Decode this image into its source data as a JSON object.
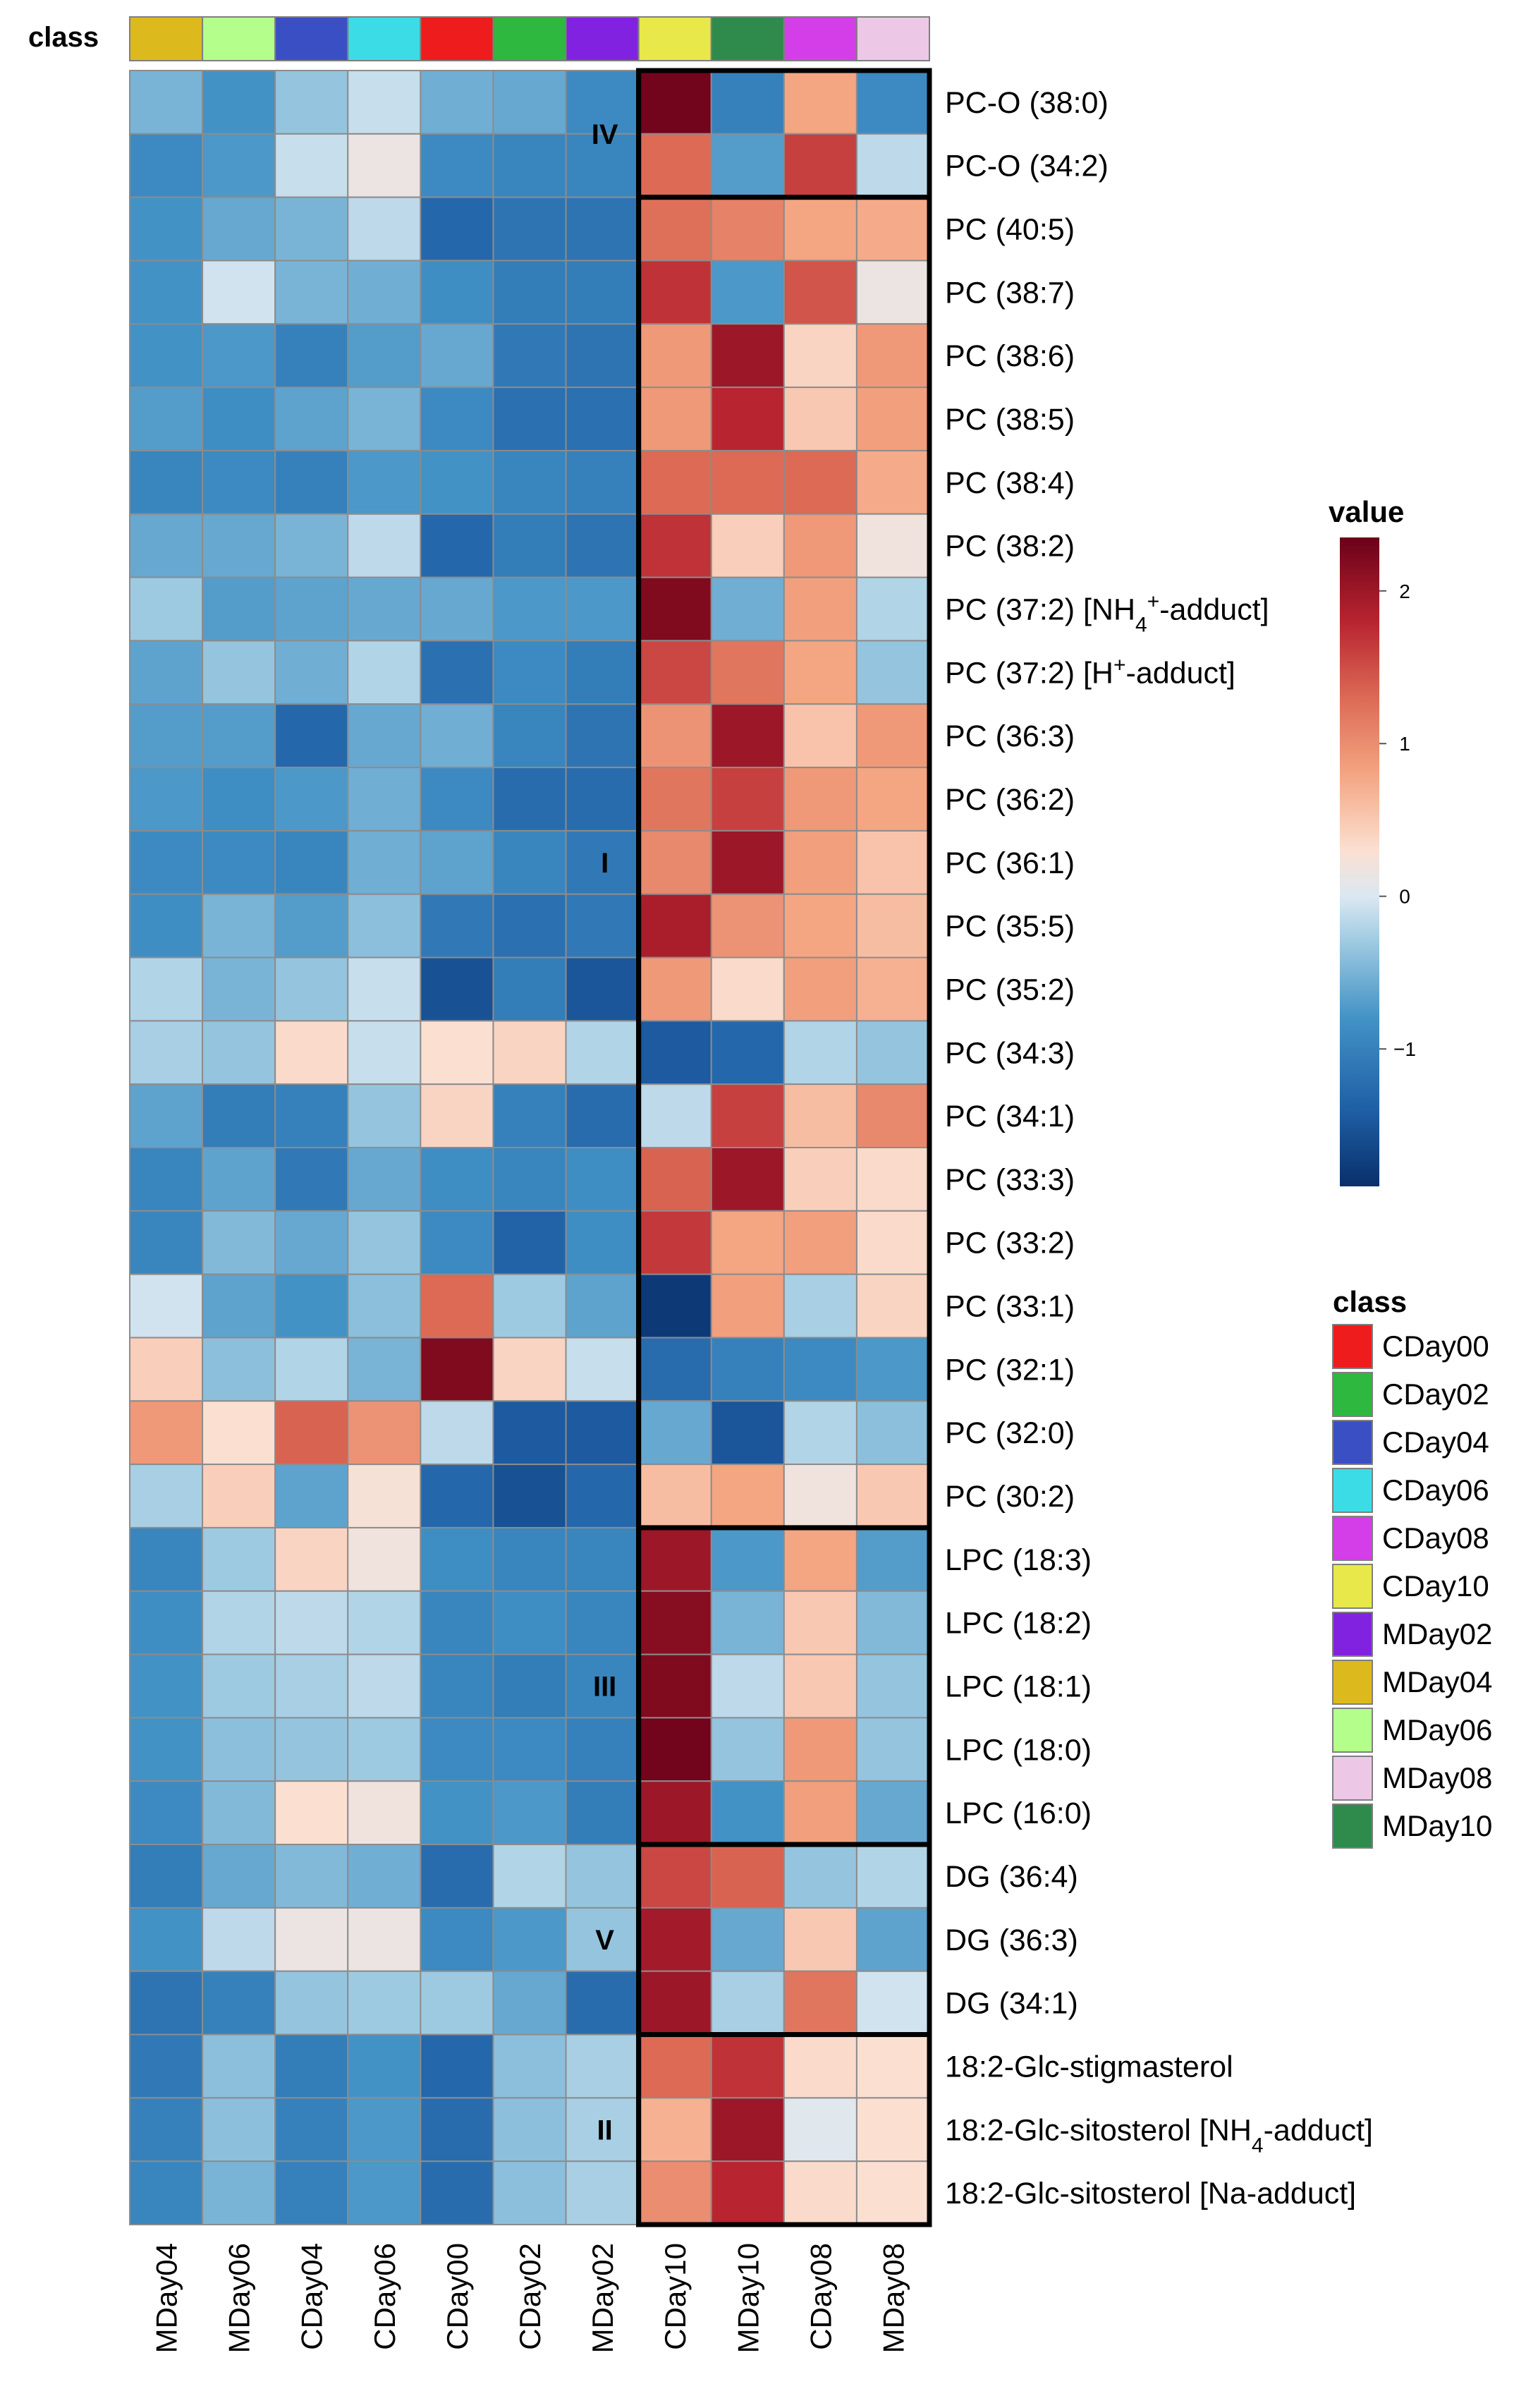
{
  "chart_data": {
    "type": "heatmap",
    "title": "",
    "class_bar_label": "class",
    "columns": [
      "MDay04",
      "MDay06",
      "CDay04",
      "CDay06",
      "CDay00",
      "CDay02",
      "MDay02",
      "CDay10",
      "MDay10",
      "CDay08",
      "MDay08"
    ],
    "column_classes": [
      "MDay04",
      "MDay06",
      "CDay04",
      "CDay06",
      "CDay00",
      "CDay02",
      "MDay02",
      "CDay10",
      "MDay10",
      "CDay08",
      "MDay08"
    ],
    "rows": [
      "PC-O (38:0)",
      "PC-O (34:2)",
      "PC (40:5)",
      "PC (38:7)",
      "PC (38:6)",
      "PC (38:5)",
      "PC (38:4)",
      "PC (38:2)",
      "PC (37:2) [NH4+-adduct]",
      "PC (37:2) [H+-adduct]",
      "PC (36:3)",
      "PC (36:2)",
      "PC (36:1)",
      "PC (35:5)",
      "PC (35:2)",
      "PC (34:3)",
      "PC (34:1)",
      "PC (33:3)",
      "PC (33:2)",
      "PC (33:1)",
      "PC (32:1)",
      "PC (32:0)",
      "PC (30:2)",
      "LPC (18:3)",
      "LPC (18:2)",
      "LPC (18:1)",
      "LPC (18:0)",
      "LPC (16:0)",
      "DG (36:4)",
      "DG (36:3)",
      "DG (34:1)",
      "18:2-Glc-stigmasterol",
      "18:2-Glc-sitosterol [NH4-adduct]",
      "18:2-Glc-sitosterol [Na-adduct]"
    ],
    "values": [
      [
        -0.5,
        -0.8,
        -0.35,
        -0.1,
        -0.55,
        -0.6,
        -0.9,
        2.3,
        -1.0,
        0.8,
        -0.9
      ],
      [
        -0.9,
        -0.75,
        -0.1,
        0.15,
        -0.9,
        -0.95,
        -0.95,
        1.3,
        -0.7,
        1.6,
        -0.15
      ],
      [
        -0.8,
        -0.6,
        -0.5,
        -0.15,
        -1.3,
        -1.15,
        -1.15,
        1.25,
        1.1,
        0.8,
        0.75
      ],
      [
        -0.8,
        -0.05,
        -0.5,
        -0.55,
        -0.85,
        -1.05,
        -1.05,
        1.7,
        -0.75,
        1.45,
        0.15
      ],
      [
        -0.8,
        -0.75,
        -1.0,
        -0.7,
        -0.6,
        -1.1,
        -1.15,
        0.9,
        2.0,
        0.4,
        0.9
      ],
      [
        -0.7,
        -0.85,
        -0.65,
        -0.5,
        -0.9,
        -1.2,
        -1.2,
        0.9,
        1.8,
        0.5,
        0.85
      ],
      [
        -0.95,
        -0.9,
        -1.0,
        -0.75,
        -0.8,
        -0.95,
        -1.0,
        1.3,
        1.3,
        1.3,
        0.75
      ],
      [
        -0.6,
        -0.6,
        -0.5,
        -0.15,
        -1.3,
        -1.05,
        -1.15,
        1.7,
        0.45,
        0.9,
        0.2
      ],
      [
        -0.3,
        -0.7,
        -0.65,
        -0.6,
        -0.6,
        -0.75,
        -0.75,
        2.2,
        -0.55,
        0.85,
        -0.2
      ],
      [
        -0.65,
        -0.35,
        -0.55,
        -0.2,
        -1.2,
        -0.9,
        -1.05,
        1.55,
        1.2,
        0.8,
        -0.35
      ],
      [
        -0.7,
        -0.7,
        -1.3,
        -0.6,
        -0.55,
        -0.95,
        -1.15,
        0.95,
        2.0,
        0.55,
        0.9
      ],
      [
        -0.75,
        -0.85,
        -0.75,
        -0.55,
        -0.9,
        -1.25,
        -1.25,
        1.2,
        1.6,
        0.9,
        0.8
      ],
      [
        -0.9,
        -0.9,
        -0.95,
        -0.55,
        -0.65,
        -0.95,
        -1.1,
        1.05,
        2.0,
        0.85,
        0.55
      ],
      [
        -0.85,
        -0.5,
        -0.7,
        -0.4,
        -1.1,
        -1.2,
        -1.1,
        1.9,
        0.95,
        0.8,
        0.6
      ],
      [
        -0.2,
        -0.5,
        -0.35,
        -0.1,
        -1.55,
        -1.05,
        -1.5,
        0.9,
        0.35,
        0.85,
        0.7
      ],
      [
        -0.25,
        -0.35,
        0.35,
        -0.1,
        0.3,
        0.4,
        -0.2,
        -1.45,
        -1.3,
        -0.2,
        -0.35
      ],
      [
        -0.65,
        -1.05,
        -1.0,
        -0.35,
        0.4,
        -1.0,
        -1.25,
        -0.15,
        1.6,
        0.6,
        1.05
      ],
      [
        -0.95,
        -0.65,
        -1.1,
        -0.6,
        -0.85,
        -0.95,
        -0.85,
        1.35,
        2.0,
        0.45,
        0.35
      ],
      [
        -0.95,
        -0.45,
        -0.6,
        -0.35,
        -0.9,
        -1.35,
        -0.85,
        1.65,
        0.8,
        0.85,
        0.35
      ],
      [
        -0.05,
        -0.65,
        -0.8,
        -0.4,
        1.3,
        -0.3,
        -0.65,
        -1.8,
        0.85,
        -0.25,
        0.4
      ],
      [
        0.45,
        -0.4,
        -0.2,
        -0.5,
        2.2,
        0.4,
        -0.1,
        -1.25,
        -1.0,
        -0.9,
        -0.75
      ],
      [
        0.9,
        0.3,
        1.35,
        0.95,
        -0.15,
        -1.45,
        -1.45,
        -0.6,
        -1.5,
        -0.2,
        -0.4
      ],
      [
        -0.25,
        0.45,
        -0.65,
        0.25,
        -1.3,
        -1.55,
        -1.3,
        0.6,
        0.8,
        0.2,
        0.5
      ],
      [
        -0.95,
        -0.3,
        0.4,
        0.2,
        -0.85,
        -0.95,
        -0.95,
        2.0,
        -0.75,
        0.8,
        -0.7
      ],
      [
        -0.85,
        -0.2,
        -0.15,
        -0.2,
        -0.95,
        -0.85,
        -0.95,
        2.15,
        -0.5,
        0.5,
        -0.45
      ],
      [
        -0.8,
        -0.3,
        -0.25,
        -0.15,
        -0.95,
        -1.05,
        -0.95,
        2.2,
        -0.15,
        0.5,
        -0.35
      ],
      [
        -0.8,
        -0.4,
        -0.35,
        -0.3,
        -0.9,
        -0.9,
        -1.0,
        2.3,
        -0.35,
        0.9,
        -0.35
      ],
      [
        -0.9,
        -0.45,
        0.3,
        0.2,
        -0.8,
        -0.75,
        -1.05,
        2.0,
        -0.8,
        0.85,
        -0.6
      ],
      [
        -1.05,
        -0.6,
        -0.45,
        -0.55,
        -1.25,
        -0.2,
        -0.35,
        1.55,
        1.35,
        -0.35,
        -0.2
      ],
      [
        -0.8,
        -0.15,
        0.15,
        0.15,
        -0.9,
        -0.75,
        -0.35,
        1.95,
        -0.6,
        0.5,
        -0.65
      ],
      [
        -1.15,
        -1.0,
        -0.35,
        -0.3,
        -0.3,
        -0.6,
        -1.25,
        2.0,
        -0.25,
        1.2,
        -0.05
      ],
      [
        -1.1,
        -0.4,
        -1.05,
        -0.8,
        -1.3,
        -0.4,
        -0.25,
        1.3,
        1.7,
        0.35,
        0.3
      ],
      [
        -1.0,
        -0.4,
        -1.0,
        -0.75,
        -1.25,
        -0.4,
        -0.25,
        0.7,
        2.0,
        0.05,
        0.3
      ],
      [
        -0.95,
        -0.5,
        -1.0,
        -0.75,
        -1.25,
        -0.4,
        -0.25,
        1.0,
        1.8,
        0.35,
        0.3
      ]
    ],
    "clusters": [
      {
        "label": "IV",
        "rows": [
          0,
          1
        ]
      },
      {
        "label": "I",
        "rows": [
          2,
          22
        ]
      },
      {
        "label": "III",
        "rows": [
          23,
          27
        ]
      },
      {
        "label": "V",
        "rows": [
          28,
          30
        ]
      },
      {
        "label": "II",
        "rows": [
          31,
          33
        ]
      }
    ],
    "highlight_columns": [
      7,
      10
    ],
    "color_scale": {
      "legend_title": "value",
      "range": [
        -1.9,
        2.35
      ],
      "ticks": [
        2,
        1,
        0,
        -1
      ],
      "tick_labels": [
        "2",
        "1",
        "0",
        "−1"
      ],
      "stops": [
        {
          "v": -1.9,
          "color": "#08306b"
        },
        {
          "v": -1.4,
          "color": "#1f5fa5"
        },
        {
          "v": -0.8,
          "color": "#4292c6"
        },
        {
          "v": -0.3,
          "color": "#9ecae1"
        },
        {
          "v": 0.0,
          "color": "#dbe8f2"
        },
        {
          "v": 0.3,
          "color": "#fbe0d2"
        },
        {
          "v": 0.8,
          "color": "#f4a582"
        },
        {
          "v": 1.3,
          "color": "#dc6a55"
        },
        {
          "v": 1.8,
          "color": "#b82430"
        },
        {
          "v": 2.35,
          "color": "#6b0119"
        }
      ]
    },
    "class_legend": {
      "title": "class",
      "items": [
        {
          "name": "CDay00",
          "color": "#ee1c1c"
        },
        {
          "name": "CDay02",
          "color": "#2eb83f"
        },
        {
          "name": "CDay04",
          "color": "#3b4fc4"
        },
        {
          "name": "CDay06",
          "color": "#3cdce6"
        },
        {
          "name": "CDay08",
          "color": "#d43ee8"
        },
        {
          "name": "CDay10",
          "color": "#e8e84a"
        },
        {
          "name": "MDay02",
          "color": "#8122e0"
        },
        {
          "name": "MDay04",
          "color": "#dcba1e"
        },
        {
          "name": "MDay06",
          "color": "#b4ff8c"
        },
        {
          "name": "MDay08",
          "color": "#ecc8e6"
        },
        {
          "name": "MDay10",
          "color": "#2e8b4c"
        }
      ]
    }
  }
}
